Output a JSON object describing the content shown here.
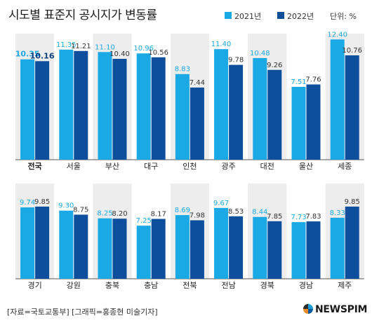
{
  "title": "시도별 표준지 공시지가 변동률",
  "unit_label": "단위: %",
  "legend": [
    {
      "label": "2021년",
      "color": "#1ba9e6"
    },
    {
      "label": "2022년",
      "color": "#0d4f9c"
    }
  ],
  "footer": "[자료=국토교통부] [그래픽=홍종현 미술기자]",
  "logo": "NEWSPIM",
  "chart_data": {
    "type": "bar",
    "series": [
      {
        "name": "2021년",
        "color": "#1ba9e6"
      },
      {
        "name": "2022년",
        "color": "#0d4f9c"
      }
    ],
    "panels": [
      {
        "categories": [
          "전국",
          "서울",
          "부산",
          "대구",
          "인천",
          "광주",
          "대전",
          "울산",
          "세종"
        ],
        "values_2021": [
          10.35,
          11.35,
          11.1,
          10.96,
          8.83,
          11.4,
          10.48,
          7.51,
          12.4
        ],
        "values_2022": [
          10.16,
          11.21,
          10.4,
          10.56,
          7.44,
          9.78,
          9.26,
          7.76,
          10.76
        ],
        "labels_2021": [
          "10.35",
          "11.35",
          "11.10",
          "10.96",
          "8.83",
          "11.40",
          "10.48",
          "7.51",
          "12.40"
        ],
        "labels_2022": [
          "10.16",
          "11.21",
          "10.40",
          "10.56",
          "7.44",
          "9.78",
          "9.26",
          "7.76",
          "10.76"
        ],
        "highlight_category": "전국"
      },
      {
        "categories": [
          "경기",
          "강원",
          "충북",
          "충남",
          "전북",
          "전남",
          "경북",
          "경남",
          "제주"
        ],
        "values_2021": [
          9.74,
          9.3,
          8.25,
          7.25,
          8.69,
          9.67,
          8.44,
          7.73,
          8.33
        ],
        "values_2022": [
          9.85,
          8.75,
          8.2,
          8.17,
          7.98,
          8.53,
          7.85,
          7.83,
          9.85
        ],
        "labels_2021": [
          "9.74",
          "9.30",
          "8.25",
          "7.25",
          "8.69",
          "9.67",
          "8.44",
          "7.73",
          "8.33"
        ],
        "labels_2022": [
          "9.85",
          "8.75",
          "8.20",
          "8.17",
          "7.98",
          "8.53",
          "7.85",
          "7.83",
          "9.85"
        ]
      }
    ],
    "ylim": [
      0,
      13
    ],
    "xlabel": "",
    "ylabel": "",
    "grid": false,
    "legend_position": "top-right"
  }
}
